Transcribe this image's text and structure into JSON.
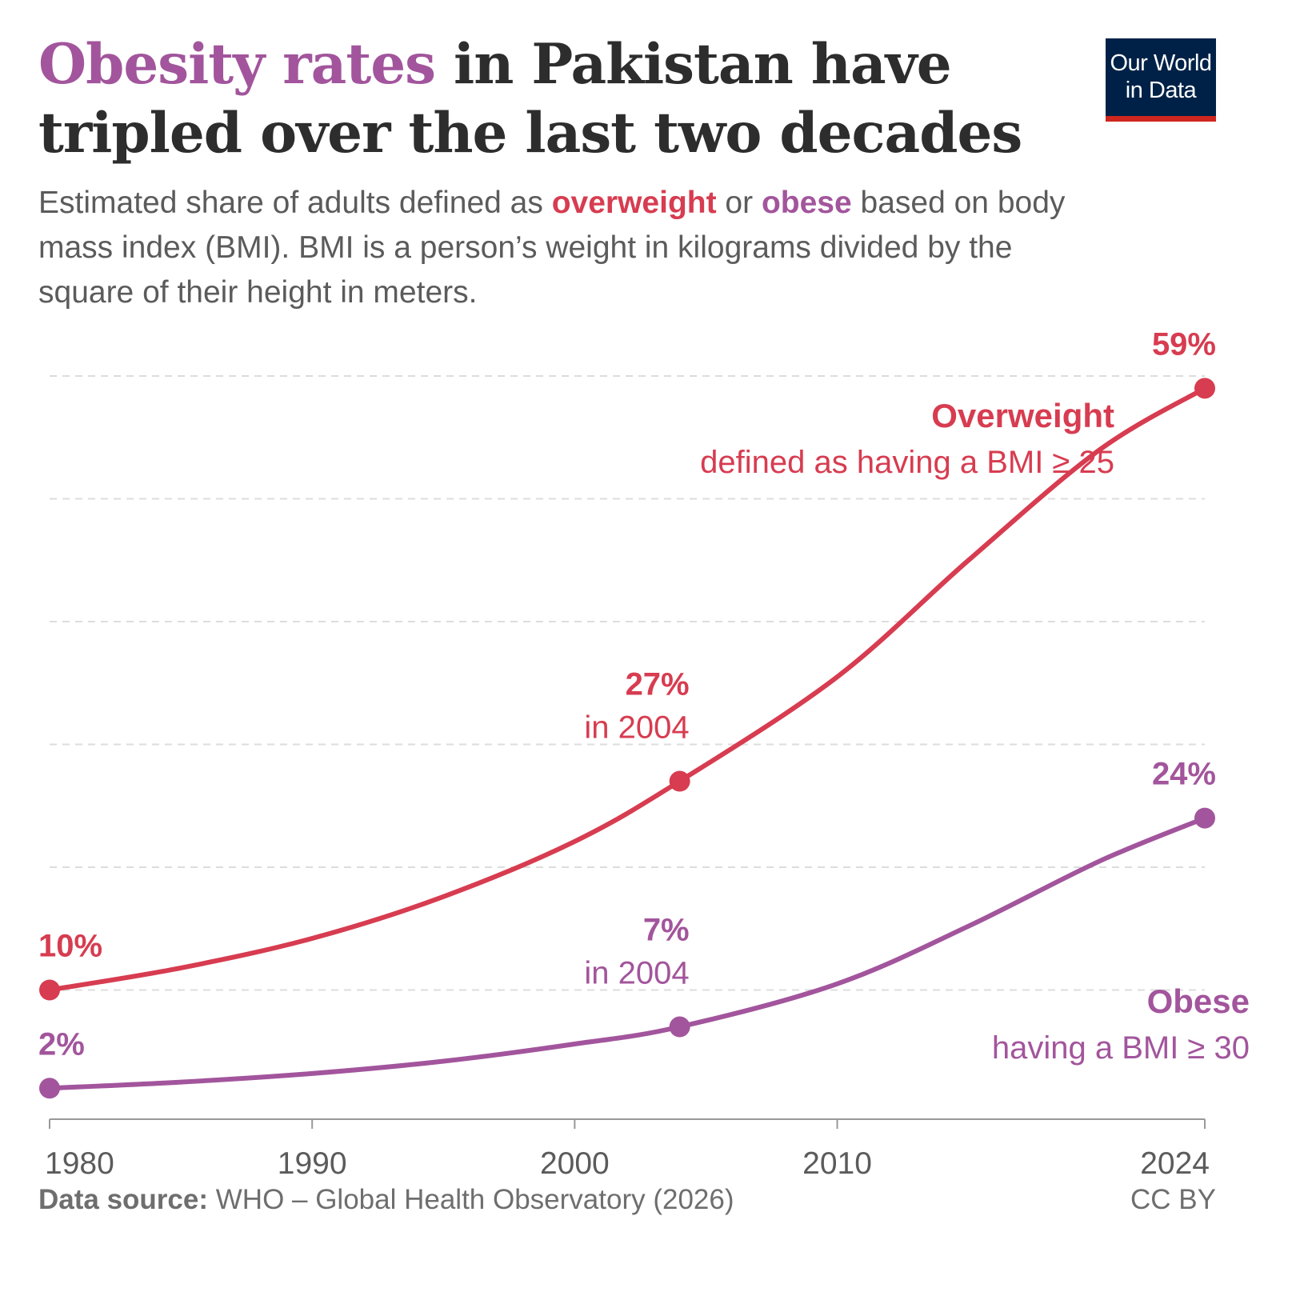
{
  "title": {
    "highlight": "Obesity rates",
    "rest": " in Pakistan have tripled over the last two decades"
  },
  "subtitle": {
    "part1": "Estimated share of adults defined as ",
    "overweight": "overweight",
    "part2": " or ",
    "obese": "obese",
    "part3": " based on body mass index (BMI). BMI is a person’s weight in kilograms divided by the square of their height in meters."
  },
  "logo": {
    "line1": "Our World",
    "line2": "in Data"
  },
  "footer": {
    "source_label": "Data source:",
    "source_text": " WHO – Global Health Observatory (2026)",
    "license": "CC BY"
  },
  "colors": {
    "overweight": "#d73c50",
    "obese": "#a2559c",
    "text": "#2d2d2d",
    "axis": "#999999",
    "grid": "#dddddd",
    "logo_bg": "#002147",
    "logo_bar": "#ce261e"
  },
  "chart_data": {
    "type": "line",
    "x_ticks": [
      1980,
      1990,
      2000,
      2010,
      2024
    ],
    "xlim": [
      1980,
      2024
    ],
    "ylim": [
      0,
      60
    ],
    "grid": true,
    "series": [
      {
        "name": "Overweight",
        "description": "defined as having a BMI ≥ 25",
        "color": "#d73c50",
        "points": [
          {
            "x": 1980,
            "y": 10
          },
          {
            "x": 1985,
            "y": 11.8
          },
          {
            "x": 1990,
            "y": 14.2
          },
          {
            "x": 1995,
            "y": 17.6
          },
          {
            "x": 2000,
            "y": 22.1
          },
          {
            "x": 2004,
            "y": 27
          },
          {
            "x": 2010,
            "y": 35.5
          },
          {
            "x": 2015,
            "y": 45
          },
          {
            "x": 2020,
            "y": 54
          },
          {
            "x": 2024,
            "y": 59
          }
        ],
        "labels": [
          {
            "x": 1980,
            "value": "10%"
          },
          {
            "x": 2004,
            "value": "27%",
            "note": "in 2004"
          },
          {
            "x": 2024,
            "value": "59%"
          }
        ]
      },
      {
        "name": "Obese",
        "description": "having a BMI ≥ 30",
        "color": "#a2559c",
        "points": [
          {
            "x": 1980,
            "y": 2
          },
          {
            "x": 1985,
            "y": 2.5
          },
          {
            "x": 1990,
            "y": 3.2
          },
          {
            "x": 1995,
            "y": 4.2
          },
          {
            "x": 2000,
            "y": 5.6
          },
          {
            "x": 2004,
            "y": 7
          },
          {
            "x": 2010,
            "y": 10.5
          },
          {
            "x": 2015,
            "y": 15.2
          },
          {
            "x": 2020,
            "y": 20.5
          },
          {
            "x": 2024,
            "y": 24
          }
        ],
        "labels": [
          {
            "x": 1980,
            "value": "2%"
          },
          {
            "x": 2004,
            "value": "7%",
            "note": "in 2004"
          },
          {
            "x": 2024,
            "value": "24%"
          }
        ]
      }
    ]
  }
}
